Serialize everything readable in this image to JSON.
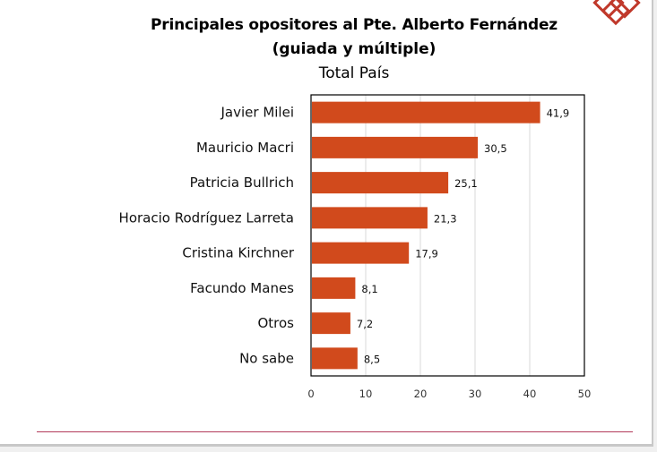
{
  "title": "Principales opositores al Pte. Alberto Fernández",
  "subtitle": "(guiada y múltiple)",
  "subtitle2": "Total País",
  "colors": {
    "bar": "#d14a1c",
    "grid": "#d9d9d9",
    "logo": "#c0392b",
    "footer_line": "#b23a5a"
  },
  "chart_data": {
    "type": "bar",
    "orientation": "horizontal",
    "title": "Principales opositores al Pte. Alberto Fernández",
    "subtitle": "(guiada y múltiple) Total País",
    "categories": [
      "Javier Milei",
      "Mauricio Macri",
      "Patricia Bullrich",
      "Horacio Rodríguez Larreta",
      "Cristina Kirchner",
      "Facundo Manes",
      "Otros",
      "No sabe"
    ],
    "values": [
      41.9,
      30.5,
      25.1,
      21.3,
      17.9,
      8.1,
      7.2,
      8.5
    ],
    "value_labels": [
      "41,9",
      "30,5",
      "25,1",
      "21,3",
      "17,9",
      "8,1",
      "7,2",
      "8,5"
    ],
    "xlim": [
      0,
      50
    ],
    "xticks": [
      0,
      10,
      20,
      30,
      40,
      50
    ],
    "xlabel": "",
    "ylabel": "",
    "grid": true,
    "legend": "none"
  }
}
